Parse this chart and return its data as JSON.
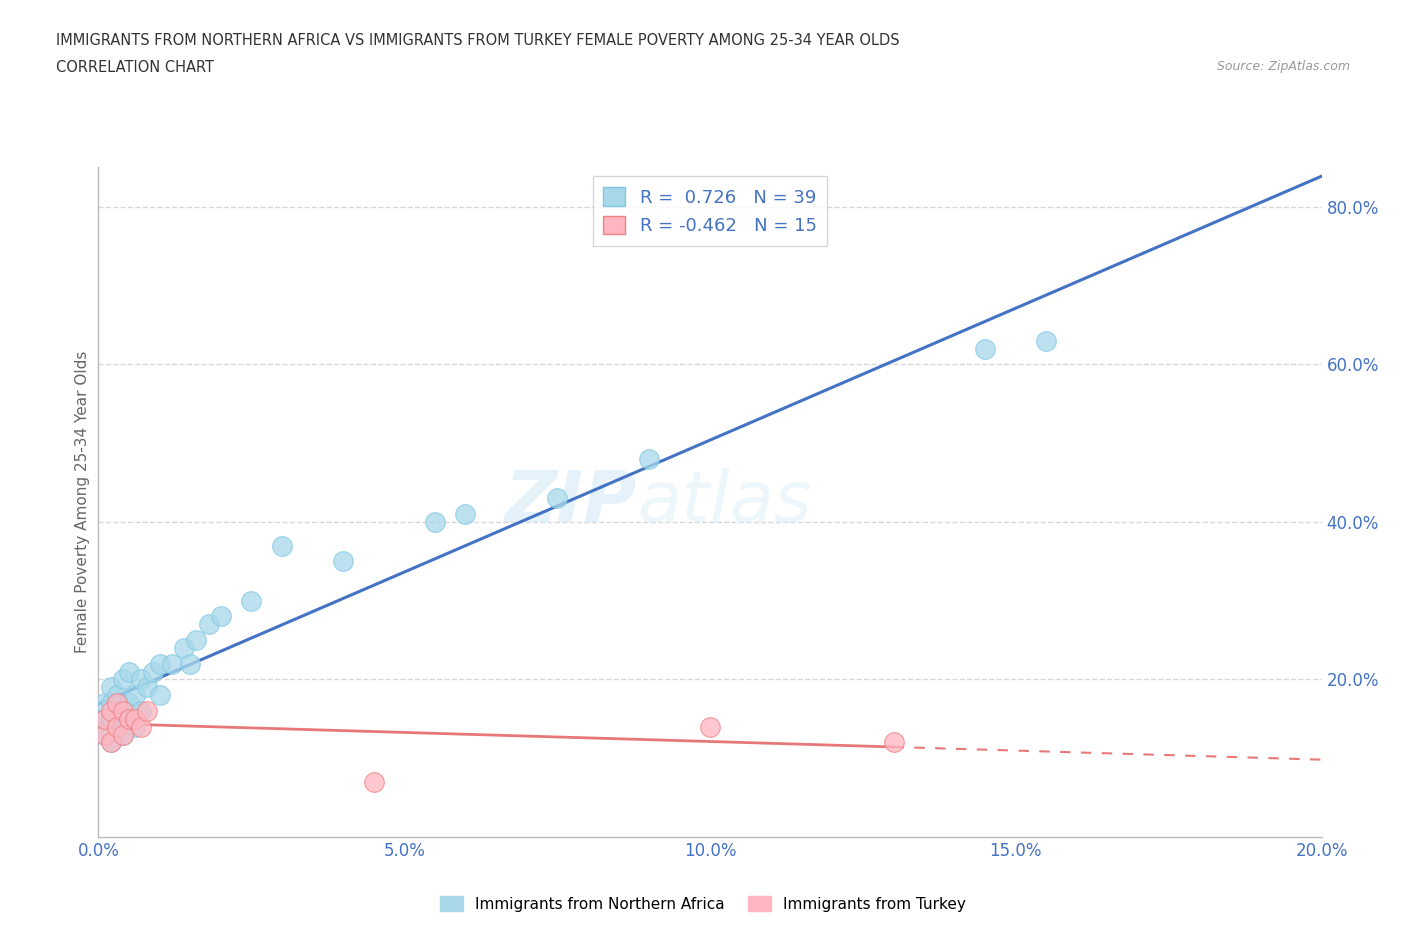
{
  "title_line1": "IMMIGRANTS FROM NORTHERN AFRICA VS IMMIGRANTS FROM TURKEY FEMALE POVERTY AMONG 25-34 YEAR OLDS",
  "title_line2": "CORRELATION CHART",
  "source": "Source: ZipAtlas.com",
  "ylabel": "Female Poverty Among 25-34 Year Olds",
  "xlim": [
    0.0,
    0.2
  ],
  "ylim": [
    0.0,
    0.85
  ],
  "xtick_labels": [
    "0.0%",
    "5.0%",
    "10.0%",
    "15.0%",
    "20.0%"
  ],
  "xtick_vals": [
    0.0,
    0.05,
    0.1,
    0.15,
    0.2
  ],
  "ytick_labels": [
    "20.0%",
    "40.0%",
    "60.0%",
    "80.0%"
  ],
  "ytick_vals": [
    0.2,
    0.4,
    0.6,
    0.8
  ],
  "blue_color": "#A8D8EA",
  "blue_edge_color": "#7EC8E3",
  "pink_color": "#FFB6C1",
  "pink_edge_color": "#F08080",
  "blue_line_color": "#4472C4",
  "pink_line_color": "#E87878",
  "r_blue": 0.726,
  "n_blue": 39,
  "r_pink": -0.462,
  "n_pink": 15,
  "watermark": "ZIPatlas",
  "blue_scatter_x": [
    0.001,
    0.001,
    0.001,
    0.002,
    0.002,
    0.002,
    0.002,
    0.003,
    0.003,
    0.003,
    0.004,
    0.004,
    0.004,
    0.005,
    0.005,
    0.005,
    0.006,
    0.006,
    0.007,
    0.007,
    0.008,
    0.009,
    0.01,
    0.01,
    0.012,
    0.014,
    0.015,
    0.016,
    0.018,
    0.02,
    0.025,
    0.03,
    0.04,
    0.055,
    0.06,
    0.075,
    0.09,
    0.145,
    0.155
  ],
  "blue_scatter_y": [
    0.13,
    0.15,
    0.17,
    0.12,
    0.15,
    0.17,
    0.19,
    0.14,
    0.16,
    0.18,
    0.13,
    0.16,
    0.2,
    0.15,
    0.17,
    0.21,
    0.14,
    0.18,
    0.16,
    0.2,
    0.19,
    0.21,
    0.18,
    0.22,
    0.22,
    0.24,
    0.22,
    0.25,
    0.27,
    0.28,
    0.3,
    0.37,
    0.35,
    0.4,
    0.41,
    0.43,
    0.48,
    0.62,
    0.63
  ],
  "pink_scatter_x": [
    0.001,
    0.001,
    0.002,
    0.002,
    0.003,
    0.003,
    0.004,
    0.004,
    0.005,
    0.006,
    0.007,
    0.008,
    0.045,
    0.1,
    0.13
  ],
  "pink_scatter_y": [
    0.13,
    0.15,
    0.12,
    0.16,
    0.14,
    0.17,
    0.13,
    0.16,
    0.15,
    0.15,
    0.14,
    0.16,
    0.07,
    0.14,
    0.12
  ],
  "background_color": "#FFFFFF",
  "grid_color": "#D8D8D8",
  "grid_linestyle": "--"
}
